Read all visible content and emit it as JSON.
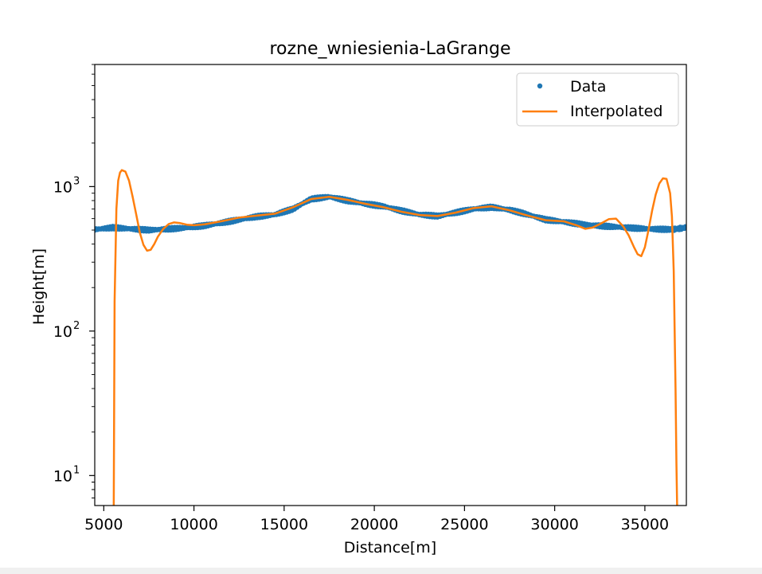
{
  "chart_data": {
    "type": "line",
    "title": "rozne_wniesienia-LaGrange",
    "xlabel": "Distance[m]",
    "ylabel": "Height[m]",
    "xscale": "linear",
    "yscale": "log",
    "xlim": [
      4500,
      37300
    ],
    "ylim": [
      6.2,
      7000
    ],
    "xticks": [
      5000,
      10000,
      15000,
      20000,
      25000,
      30000,
      35000
    ],
    "xtick_labels": [
      "5000",
      "10000",
      "15000",
      "20000",
      "25000",
      "30000",
      "35000"
    ],
    "yticks": [
      10,
      100,
      1000
    ],
    "ytick_labels": [
      {
        "base": "10",
        "exp": "1"
      },
      {
        "base": "10",
        "exp": "2"
      },
      {
        "base": "10",
        "exp": "3"
      }
    ],
    "legend": {
      "position": "top-right",
      "entries": [
        {
          "label": "Data",
          "marker": "dot",
          "color": "#1f77b4"
        },
        {
          "label": "Interpolated",
          "marker": "line",
          "color": "#ff7f0e"
        }
      ]
    },
    "series": [
      {
        "name": "Data",
        "style": "points",
        "color": "#1f77b4",
        "x": [
          4500,
          5500,
          6500,
          7500,
          8500,
          9500,
          10500,
          11500,
          12500,
          13500,
          14500,
          15500,
          16500,
          17500,
          18500,
          19500,
          20500,
          21500,
          22500,
          23500,
          24500,
          25500,
          26500,
          27500,
          28500,
          29500,
          30500,
          31500,
          32500,
          33500,
          34500,
          35500,
          36500,
          37300
        ],
        "y": [
          505,
          520,
          510,
          500,
          508,
          518,
          535,
          560,
          590,
          620,
          640,
          700,
          820,
          850,
          800,
          760,
          730,
          680,
          640,
          625,
          660,
          700,
          720,
          690,
          640,
          590,
          570,
          548,
          535,
          525,
          515,
          508,
          505,
          520
        ]
      },
      {
        "name": "Interpolated",
        "style": "line",
        "color": "#ff7f0e",
        "x": [
          5550,
          5600,
          5700,
          5800,
          5900,
          6000,
          6200,
          6400,
          6600,
          6800,
          7000,
          7200,
          7400,
          7600,
          7800,
          8000,
          8300,
          8600,
          8900,
          9200,
          9600,
          10000,
          10600,
          11500,
          12500,
          13500,
          14500,
          15500,
          16500,
          17500,
          18500,
          19500,
          20500,
          21500,
          22500,
          23500,
          24500,
          25500,
          26500,
          27500,
          28500,
          29500,
          30500,
          31200,
          31700,
          32100,
          32500,
          33000,
          33400,
          33800,
          34100,
          34400,
          34600,
          34800,
          35000,
          35200,
          35400,
          35600,
          35800,
          36000,
          36200,
          36400,
          36500,
          36600,
          36700,
          36750,
          36800
        ],
        "y": [
          5,
          160,
          700,
          1100,
          1250,
          1300,
          1270,
          1100,
          850,
          640,
          480,
          395,
          360,
          365,
          400,
          450,
          510,
          550,
          565,
          560,
          545,
          540,
          548,
          575,
          610,
          630,
          650,
          720,
          820,
          850,
          810,
          760,
          720,
          670,
          635,
          625,
          660,
          710,
          730,
          685,
          630,
          585,
          575,
          540,
          510,
          520,
          550,
          595,
          600,
          530,
          460,
          380,
          340,
          330,
          380,
          500,
          680,
          880,
          1050,
          1140,
          1130,
          900,
          620,
          260,
          40,
          12,
          5
        ]
      }
    ]
  }
}
